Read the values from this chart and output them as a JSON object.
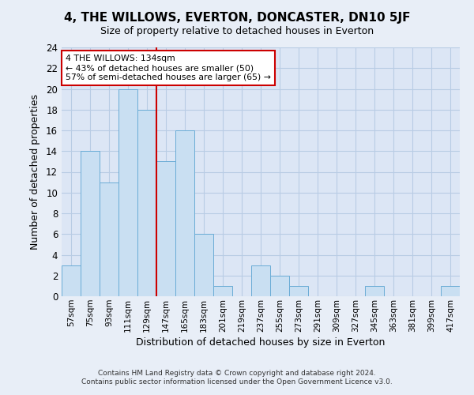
{
  "title": "4, THE WILLOWS, EVERTON, DONCASTER, DN10 5JF",
  "subtitle": "Size of property relative to detached houses in Everton",
  "xlabel": "Distribution of detached houses by size in Everton",
  "ylabel": "Number of detached properties",
  "bin_labels": [
    "57sqm",
    "75sqm",
    "93sqm",
    "111sqm",
    "129sqm",
    "147sqm",
    "165sqm",
    "183sqm",
    "201sqm",
    "219sqm",
    "237sqm",
    "255sqm",
    "273sqm",
    "291sqm",
    "309sqm",
    "327sqm",
    "345sqm",
    "363sqm",
    "381sqm",
    "399sqm",
    "417sqm"
  ],
  "bar_values": [
    3,
    14,
    11,
    20,
    18,
    13,
    16,
    6,
    1,
    0,
    3,
    2,
    1,
    0,
    0,
    0,
    1,
    0,
    0,
    0,
    1
  ],
  "bar_color": "#c9dff2",
  "bar_edge_color": "#6aacd6",
  "property_line_x": 4.5,
  "property_line_label": "4 THE WILLOWS: 134sqm",
  "annotation_line1": "← 43% of detached houses are smaller (50)",
  "annotation_line2": "57% of semi-detached houses are larger (65) →",
  "annotation_box_color": "#ffffff",
  "annotation_box_edge": "#cc0000",
  "vline_color": "#cc0000",
  "ylim": [
    0,
    24
  ],
  "yticks": [
    0,
    2,
    4,
    6,
    8,
    10,
    12,
    14,
    16,
    18,
    20,
    22,
    24
  ],
  "footer_line1": "Contains HM Land Registry data © Crown copyright and database right 2024.",
  "footer_line2": "Contains public sector information licensed under the Open Government Licence v3.0.",
  "bg_color": "#e8eef7",
  "plot_bg_color": "#dce6f5",
  "grid_color": "#b8cce4"
}
